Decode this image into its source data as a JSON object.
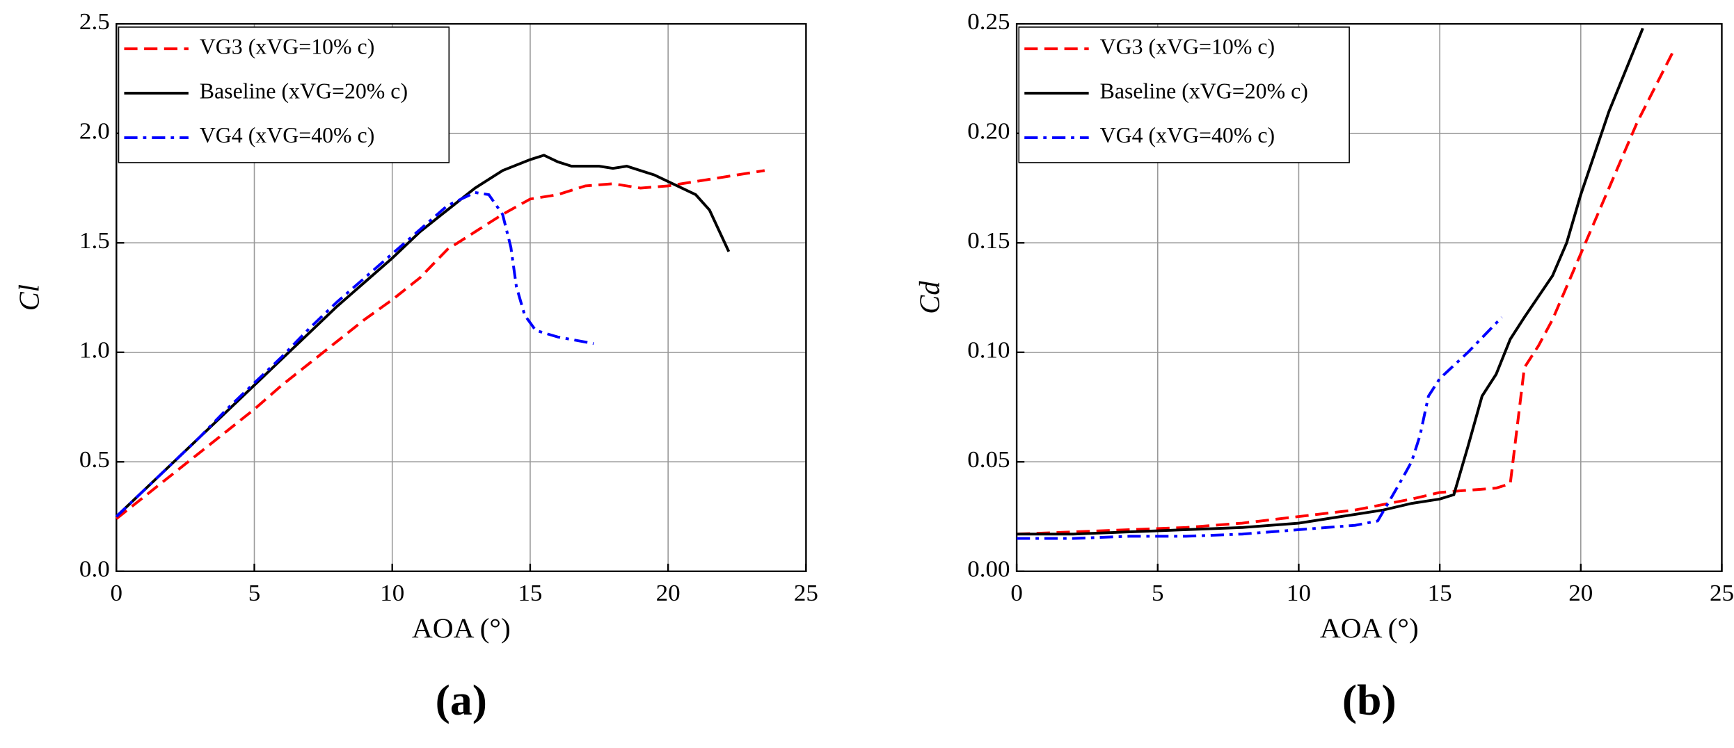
{
  "chart_data": [
    {
      "type": "line",
      "caption": "(a)",
      "xlabel": "AOA (°)",
      "ylabel": "Cl",
      "xlim": [
        0,
        25
      ],
      "xticks": [
        0,
        5,
        10,
        15,
        20,
        25
      ],
      "ylim": [
        0,
        2.5
      ],
      "yticks": [
        {
          "value": 0,
          "label": "0.0"
        },
        0.5,
        {
          "value": 1,
          "label": "1.0"
        },
        1.5,
        {
          "value": 2,
          "label": "2.0"
        },
        2.5
      ],
      "grid": true,
      "legend": "upper left",
      "series": [
        {
          "name": "VG3 (xVG=10% c)",
          "color": "#ff0000",
          "line_style": "dashed",
          "x": [
            0,
            1,
            2,
            3,
            4,
            5,
            6,
            7,
            8,
            9,
            10,
            11,
            12,
            13,
            14,
            15,
            16,
            17,
            18,
            19,
            20,
            21,
            22,
            23.5
          ],
          "values": [
            0.24,
            0.34,
            0.44,
            0.54,
            0.64,
            0.74,
            0.85,
            0.95,
            1.05,
            1.15,
            1.24,
            1.34,
            1.47,
            1.55,
            1.63,
            1.7,
            1.72,
            1.76,
            1.77,
            1.75,
            1.76,
            1.78,
            1.8,
            1.83
          ]
        },
        {
          "name": "Baseline (xVG=20% c)",
          "color": "#000000",
          "line_style": "solid",
          "x": [
            0,
            1,
            2,
            3,
            4,
            5,
            6,
            7,
            8,
            9,
            10,
            11,
            12,
            13,
            14,
            15,
            15.5,
            16,
            16.5,
            17,
            17.5,
            18,
            18.5,
            19,
            19.5,
            20,
            21,
            21.5,
            22.2
          ],
          "values": [
            0.25,
            0.37,
            0.49,
            0.61,
            0.73,
            0.85,
            0.97,
            1.09,
            1.21,
            1.32,
            1.43,
            1.55,
            1.65,
            1.75,
            1.83,
            1.88,
            1.9,
            1.87,
            1.85,
            1.85,
            1.85,
            1.84,
            1.85,
            1.83,
            1.81,
            1.78,
            1.72,
            1.65,
            1.46
          ]
        },
        {
          "name": "VG4 (xVG=40% c)",
          "color": "#0000ff",
          "line_style": "dashdot",
          "x": [
            0,
            1,
            2,
            3,
            4,
            5,
            6,
            7,
            8,
            9,
            10,
            11,
            12,
            13,
            13.5,
            14,
            14.3,
            14.5,
            14.8,
            15.2,
            16,
            17.3
          ],
          "values": [
            0.25,
            0.37,
            0.49,
            0.61,
            0.74,
            0.86,
            0.98,
            1.11,
            1.23,
            1.34,
            1.45,
            1.56,
            1.67,
            1.73,
            1.72,
            1.63,
            1.48,
            1.3,
            1.17,
            1.1,
            1.07,
            1.04
          ]
        }
      ]
    },
    {
      "type": "line",
      "caption": "(b)",
      "xlabel": "AOA (°)",
      "ylabel": "Cd",
      "xlim": [
        0,
        25
      ],
      "xticks": [
        0,
        5,
        10,
        15,
        20,
        25
      ],
      "ylim": [
        0,
        0.25
      ],
      "yticks": [
        {
          "value": 0,
          "label": "0.00"
        },
        0.05,
        {
          "value": 0.1,
          "label": "0.10"
        },
        0.15,
        {
          "value": 0.2,
          "label": "0.20"
        },
        0.25
      ],
      "grid": true,
      "legend": "upper left",
      "series": [
        {
          "name": "VG3 (xVG=10% c)",
          "color": "#ff0000",
          "line_style": "dashed",
          "x": [
            0,
            2,
            4,
            6,
            8,
            10,
            12,
            14,
            15,
            16,
            17,
            17.5,
            18,
            18.5,
            19,
            20,
            21,
            22,
            23.3
          ],
          "values": [
            0.017,
            0.018,
            0.019,
            0.02,
            0.022,
            0.025,
            0.028,
            0.033,
            0.036,
            0.037,
            0.038,
            0.04,
            0.093,
            0.103,
            0.115,
            0.145,
            0.175,
            0.205,
            0.238
          ]
        },
        {
          "name": "Baseline (xVG=20% c)",
          "color": "#000000",
          "line_style": "solid",
          "x": [
            0,
            2,
            4,
            6,
            8,
            10,
            12,
            13,
            14,
            15,
            15.5,
            16,
            16.5,
            17,
            17.5,
            18,
            19,
            19.5,
            20,
            21,
            22.2
          ],
          "values": [
            0.017,
            0.017,
            0.018,
            0.019,
            0.02,
            0.022,
            0.026,
            0.028,
            0.031,
            0.033,
            0.035,
            0.057,
            0.08,
            0.09,
            0.106,
            0.116,
            0.135,
            0.15,
            0.172,
            0.21,
            0.248
          ]
        },
        {
          "name": "VG4 (xVG=40% c)",
          "color": "#0000ff",
          "line_style": "dashdot",
          "x": [
            0,
            2,
            4,
            6,
            8,
            10,
            12,
            12.8,
            13.3,
            13.7,
            14,
            14.3,
            14.6,
            15,
            15.5,
            16,
            17.2
          ],
          "values": [
            0.015,
            0.015,
            0.016,
            0.016,
            0.017,
            0.019,
            0.021,
            0.023,
            0.034,
            0.043,
            0.05,
            0.062,
            0.08,
            0.088,
            0.094,
            0.1,
            0.116
          ]
        }
      ]
    }
  ]
}
